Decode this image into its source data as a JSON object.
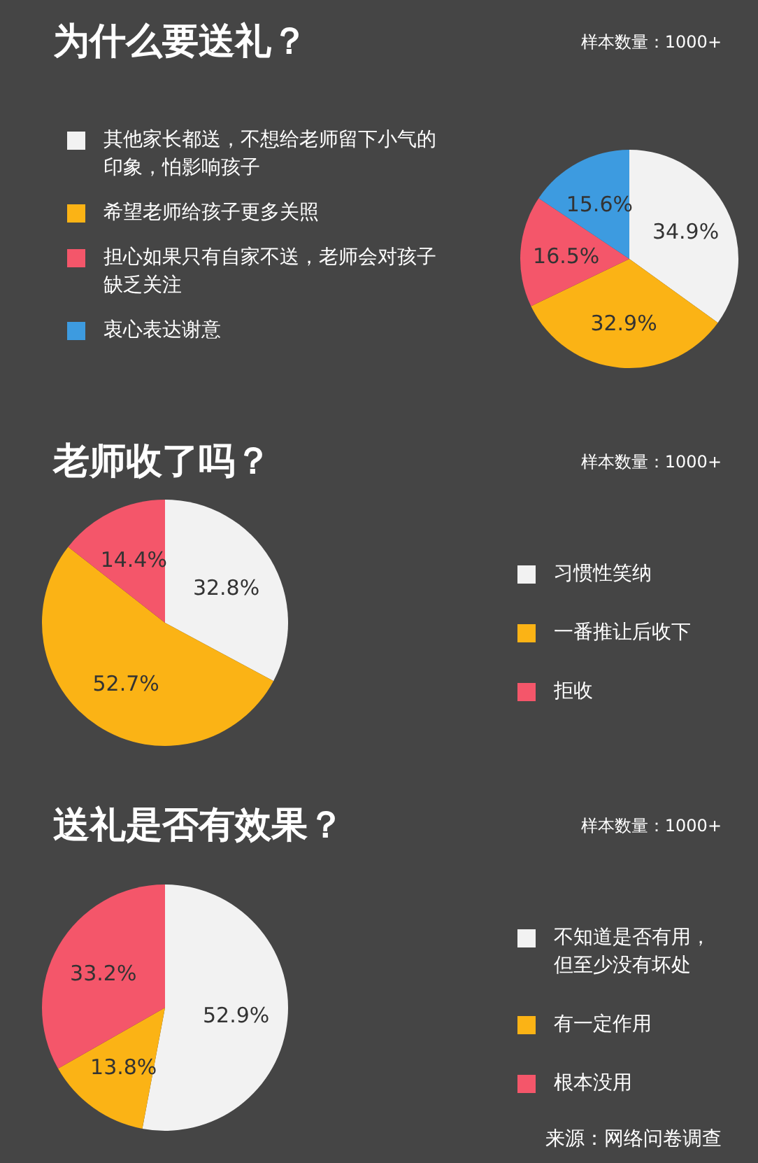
{
  "chart_data": [
    {
      "type": "pie",
      "title": "为什么要送礼？",
      "subtitle": "样本数量：1000+",
      "categories": [
        "其他家长都送，不想给老师留下小气的印象，怕影响孩子",
        "希望老师给孩子更多关照",
        "担心如果只有自家不送，老师会对孩子缺乏关注",
        "衷心表达谢意"
      ],
      "values": [
        34.9,
        32.9,
        16.5,
        15.6
      ],
      "colors": [
        "#f2f2f2",
        "#fbb315",
        "#f4566a",
        "#3d9be0"
      ],
      "value_labels": [
        "34.9%",
        "32.9%",
        "16.5%",
        "15.6%"
      ],
      "legend": "left"
    },
    {
      "type": "pie",
      "title": "老师收了吗？",
      "subtitle": "样本数量：1000+",
      "categories": [
        "习惯性笑纳",
        "一番推让后收下",
        "拒收"
      ],
      "values": [
        32.8,
        52.7,
        14.4
      ],
      "colors": [
        "#f2f2f2",
        "#fbb315",
        "#f4566a"
      ],
      "value_labels": [
        "32.8%",
        "52.7%",
        "14.4%"
      ],
      "legend": "right"
    },
    {
      "type": "pie",
      "title": "送礼是否有效果？",
      "subtitle": "样本数量：1000+",
      "categories": [
        "不知道是否有用，但至少没有坏处",
        "有一定作用",
        "根本没用"
      ],
      "values": [
        52.9,
        13.8,
        33.2
      ],
      "colors": [
        "#f2f2f2",
        "#fbb315",
        "#f4566a"
      ],
      "value_labels": [
        "52.9%",
        "13.8%",
        "33.2%"
      ],
      "legend": "right",
      "annotations": [
        "来源：网络问卷调查"
      ]
    }
  ]
}
